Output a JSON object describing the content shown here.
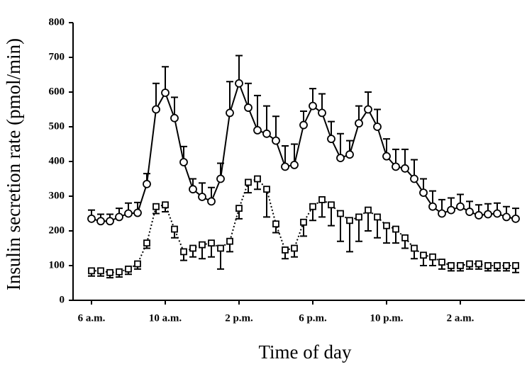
{
  "chart_data": {
    "type": "line",
    "x_label": "Time of day",
    "y_label": "Insulin secretion rate (pmol/min)",
    "x": [
      6,
      6.5,
      7,
      7.5,
      8,
      8.5,
      9,
      9.5,
      10,
      10.5,
      11,
      11.5,
      12,
      12.5,
      13,
      13.5,
      14,
      14.5,
      15,
      15.5,
      16,
      16.5,
      17,
      17.5,
      18,
      18.5,
      19,
      19.5,
      20,
      20.5,
      21,
      21.5,
      22,
      22.5,
      23,
      23.5,
      24,
      24.5,
      25,
      25.5,
      26,
      26.5,
      27,
      27.5,
      28,
      28.5,
      29
    ],
    "series": [
      {
        "color": "#000000",
        "marker": "circle",
        "line_style": "solid",
        "error_side": "up",
        "values": [
          235,
          228,
          228,
          240,
          250,
          252,
          335,
          550,
          598,
          525,
          398,
          320,
          298,
          285,
          350,
          540,
          625,
          555,
          490,
          480,
          460,
          385,
          390,
          505,
          560,
          540,
          465,
          410,
          420,
          510,
          550,
          500,
          415,
          385,
          380,
          350,
          310,
          270,
          250,
          260,
          270,
          255,
          245,
          248,
          250,
          240,
          235
        ],
        "errors": [
          25,
          20,
          20,
          25,
          30,
          30,
          30,
          75,
          75,
          60,
          45,
          30,
          40,
          40,
          45,
          90,
          80,
          70,
          100,
          80,
          70,
          60,
          60,
          40,
          50,
          55,
          50,
          70,
          40,
          50,
          50,
          50,
          50,
          50,
          55,
          55,
          40,
          45,
          40,
          35,
          35,
          30,
          30,
          30,
          30,
          30,
          30
        ]
      },
      {
        "color": "#000000",
        "marker": "square",
        "line_style": "dotted",
        "error_side": "down",
        "values": [
          85,
          85,
          80,
          82,
          90,
          105,
          165,
          270,
          275,
          205,
          140,
          150,
          160,
          165,
          150,
          170,
          265,
          340,
          350,
          320,
          220,
          145,
          150,
          225,
          270,
          290,
          275,
          250,
          230,
          240,
          260,
          240,
          215,
          205,
          180,
          150,
          130,
          125,
          110,
          100,
          100,
          105,
          105,
          100,
          100,
          100,
          100
        ],
        "errors": [
          15,
          15,
          15,
          15,
          15,
          15,
          15,
          20,
          20,
          25,
          25,
          25,
          40,
          40,
          60,
          30,
          30,
          30,
          30,
          80,
          25,
          25,
          25,
          40,
          40,
          50,
          60,
          80,
          90,
          70,
          60,
          60,
          50,
          40,
          30,
          30,
          30,
          25,
          20,
          15,
          15,
          15,
          15,
          15,
          15,
          15,
          20
        ]
      }
    ],
    "xlim": [
      5,
      29.5
    ],
    "xticks": [
      {
        "value": 6,
        "label": "6 a.m."
      },
      {
        "value": 10,
        "label": "10 a.m."
      },
      {
        "value": 14,
        "label": "2 p.m."
      },
      {
        "value": 18,
        "label": "6 p.m."
      },
      {
        "value": 22,
        "label": "10 p.m."
      },
      {
        "value": 26,
        "label": "2 a.m."
      }
    ],
    "ylim": [
      0,
      800
    ],
    "yticks": [
      0,
      100,
      200,
      300,
      400,
      500,
      600,
      700,
      800
    ],
    "grid": false
  }
}
